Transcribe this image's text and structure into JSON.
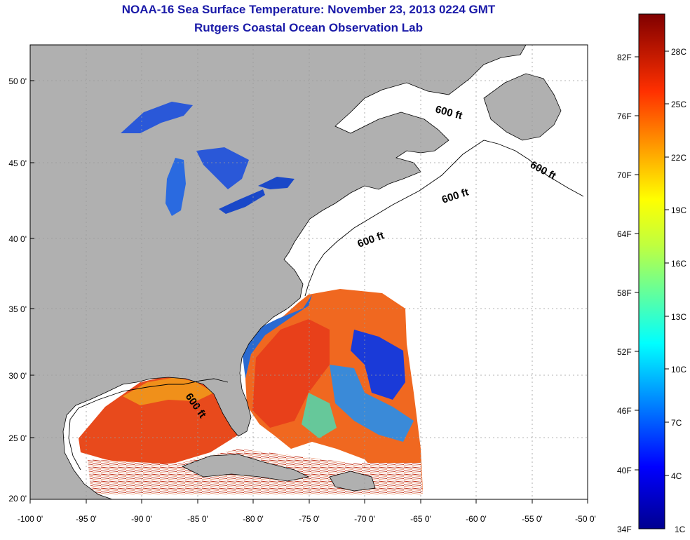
{
  "title": {
    "line1": "NOAA-16 Sea Surface Temperature:  November 23, 2013 0224 GMT",
    "line2": "Rutgers Coastal Ocean Observation Lab"
  },
  "colors": {
    "title": "#1a1aa8",
    "land": "#b0b0b0",
    "ocean_nodata": "#ffffff",
    "grid": "#9a9a9a"
  },
  "axes": {
    "lat_labels": [
      "50 0'",
      "45 0'",
      "40 0'",
      "35 0'",
      "30 0'",
      "25 0'",
      "20 0'"
    ],
    "lon_labels": [
      "-100 0'",
      "-95 0'",
      "-90 0'",
      "-85 0'",
      "-80 0'",
      "-75 0'",
      "-70 0'",
      "-65 0'",
      "-60 0'",
      "-55 0'",
      "-50 0'"
    ]
  },
  "contour": {
    "label": "600 ft",
    "count": 6
  },
  "colorbar": {
    "f_labels": [
      "82F",
      "76F",
      "70F",
      "64F",
      "58F",
      "52F",
      "46F",
      "40F",
      "34F"
    ],
    "c_labels": [
      "28C",
      "25C",
      "22C",
      "19C",
      "16C",
      "13C",
      "10C",
      "7C",
      "4C",
      "1C"
    ]
  }
}
